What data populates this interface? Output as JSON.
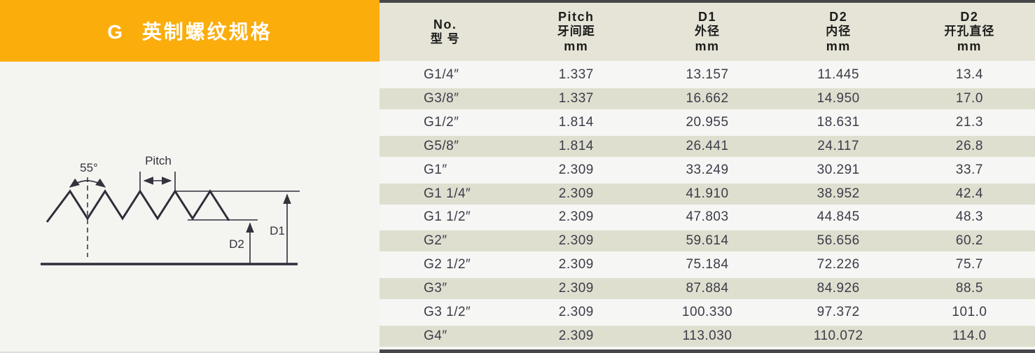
{
  "title": {
    "text": "G 英制螺纹规格"
  },
  "diagram": {
    "angle_label": "55°",
    "pitch_label": "Pitch",
    "d1_label": "D1",
    "d2_label": "D2"
  },
  "table": {
    "columns": [
      {
        "lines": [
          "No.",
          "型 号"
        ]
      },
      {
        "lines": [
          "Pitch",
          "牙间距",
          "mm"
        ]
      },
      {
        "lines": [
          "D1",
          "外径",
          "mm"
        ]
      },
      {
        "lines": [
          "D2",
          "内径",
          "mm"
        ]
      },
      {
        "lines": [
          "D2",
          "开孔直径",
          "mm"
        ]
      }
    ],
    "rows": [
      [
        "G1/4″",
        "1.337",
        "13.157",
        "11.445",
        "13.4"
      ],
      [
        "G3/8″",
        "1.337",
        "16.662",
        "14.950",
        "17.0"
      ],
      [
        "G1/2″",
        "1.814",
        "20.955",
        "18.631",
        "21.3"
      ],
      [
        "G5/8″",
        "1.814",
        "26.441",
        "24.117",
        "26.8"
      ],
      [
        "G1″",
        "2.309",
        "33.249",
        "30.291",
        "33.7"
      ],
      [
        "G1 1/4″",
        "2.309",
        "41.910",
        "38.952",
        "42.4"
      ],
      [
        "G1 1/2″",
        "2.309",
        "47.803",
        "44.845",
        "48.3"
      ],
      [
        "G2″",
        "2.309",
        "59.614",
        "56.656",
        "60.2"
      ],
      [
        "G2 1/2″",
        "2.309",
        "75.184",
        "72.226",
        "75.7"
      ],
      [
        "G3″",
        "2.309",
        "87.884",
        "84.926",
        "88.5"
      ],
      [
        "G3 1/2″",
        "2.309",
        "100.330",
        "97.372",
        "101.0"
      ],
      [
        "G4″",
        "2.309",
        "113.030",
        "110.072",
        "114.0"
      ]
    ]
  },
  "colors": {
    "accent_orange": "#FBAD0C",
    "header_beige": "#E5E4D6",
    "row_shaded": "#DFDFD0",
    "row_light": "#F6F6F4",
    "bar_dark": "#47474B",
    "text_dark": "#3C3C49",
    "title_text": "#FFFFFF"
  }
}
